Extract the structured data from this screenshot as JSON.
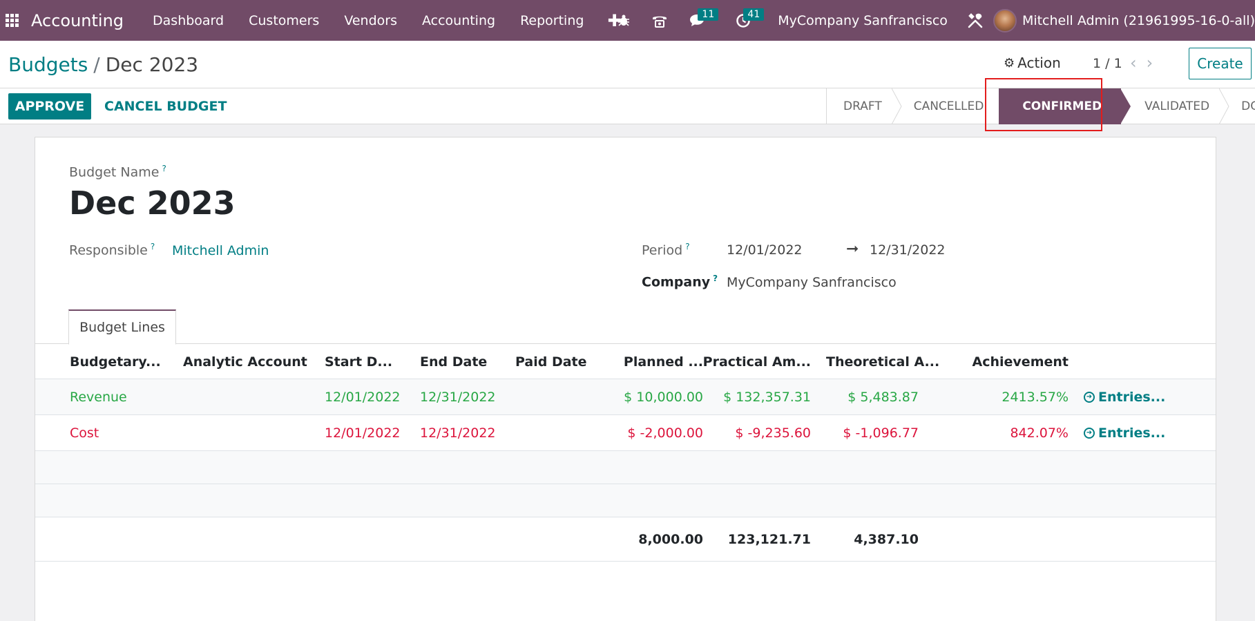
{
  "navbar": {
    "app_name": "Accounting",
    "menu": [
      "Dashboard",
      "Customers",
      "Vendors",
      "Accounting",
      "Reporting"
    ],
    "plus": "✚",
    "messages_count": "11",
    "activities_count": "41",
    "company": "MyCompany Sanfrancisco",
    "user": "Mitchell Admin (21961995-16-0-all)"
  },
  "breadcrumb": {
    "parent": "Budgets",
    "separator": "/",
    "current": "Dec 2023"
  },
  "control": {
    "action_label": "Action",
    "pager": "1 / 1",
    "create_label": "Create"
  },
  "statusbar": {
    "approve_label": "APPROVE",
    "cancel_label": "CANCEL BUDGET",
    "stages": [
      "DRAFT",
      "CANCELLED",
      "CONFIRMED",
      "VALIDATED",
      "DONE"
    ],
    "active_stage": "CONFIRMED"
  },
  "form": {
    "budget_name_label": "Budget Name",
    "help_mark": "?",
    "budget_name": "Dec 2023",
    "responsible_label": "Responsible",
    "responsible": "Mitchell Admin",
    "period_label": "Period",
    "period_start": "12/01/2022",
    "period_end": "12/31/2022",
    "company_label": "Company",
    "company": "MyCompany Sanfrancisco",
    "tab_label": "Budget Lines"
  },
  "table": {
    "headers": {
      "budgetary": "Budgetary...",
      "analytic": "Analytic Account",
      "start": "Start D...",
      "end": "End Date",
      "paid": "Paid Date",
      "planned": "Planned ...",
      "practical": "Practical Am...",
      "theoretical": "Theoretical A...",
      "achievement": "Achievement"
    },
    "rows": [
      {
        "budgetary": "Revenue",
        "analytic": "",
        "start": "12/01/2022",
        "end": "12/31/2022",
        "paid": "",
        "planned": "$ 10,000.00",
        "practical": "$ 132,357.31",
        "theoretical": "$ 5,483.87",
        "achievement": "2413.57%",
        "entries": "Entries...",
        "color": "#28a745"
      },
      {
        "budgetary": "Cost",
        "analytic": "",
        "start": "12/01/2022",
        "end": "12/31/2022",
        "paid": "",
        "planned": "$ -2,000.00",
        "practical": "$ -9,235.60",
        "theoretical": "$ -1,096.77",
        "achievement": "842.07%",
        "entries": "Entries...",
        "color": "#dc143c"
      }
    ],
    "totals": {
      "planned": "8,000.00",
      "practical": "123,121.71",
      "theoretical": "4,387.10"
    }
  },
  "colors": {
    "brand": "#714b67",
    "accent": "#017e84",
    "positive": "#28a745",
    "negative": "#dc143c"
  }
}
